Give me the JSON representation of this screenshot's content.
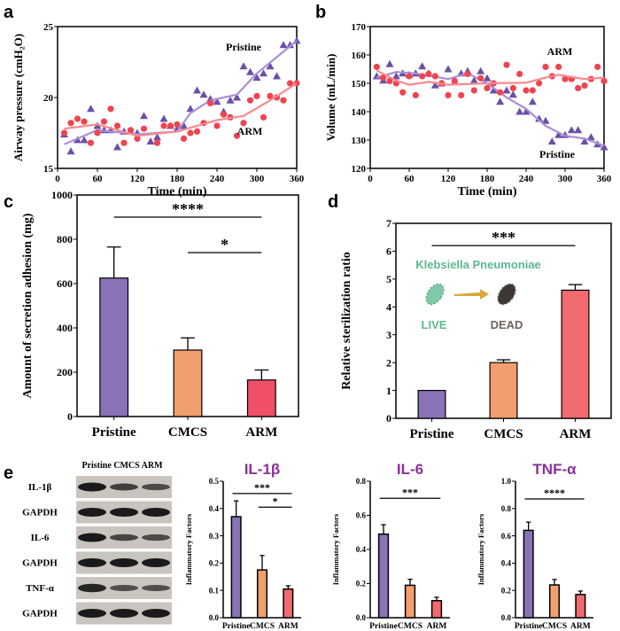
{
  "panels": {
    "a": "a",
    "b": "b",
    "c": "c",
    "d": "d",
    "e": "e"
  },
  "colors": {
    "pristine": "#8a72b6",
    "pristine_marker": "#6b4fa6",
    "pristine_line": "#aa8fd8",
    "arm_marker": "#ef4450",
    "arm_line": "#f68a8e",
    "cmcs": "#f0a06c",
    "arm_bar": "#f06a70",
    "title_purple": "#8a2f9a",
    "live": "#5cb890",
    "dead": "#6d6460"
  },
  "chart_data": [
    {
      "id": "a",
      "type": "scatter",
      "xlabel": "Time (min)",
      "ylabel": "Airway pressure (cmH₂O)",
      "xlim": [
        0,
        360
      ],
      "ylim": [
        15,
        25
      ],
      "xticks": [
        0,
        60,
        120,
        180,
        240,
        300,
        360
      ],
      "yticks": [
        15,
        20,
        25
      ],
      "series": [
        {
          "name": "Pristine",
          "marker": "triangle",
          "points": [
            [
              10,
              17.4
            ],
            [
              20,
              16.2
            ],
            [
              30,
              17
            ],
            [
              40,
              17
            ],
            [
              50,
              19.2
            ],
            [
              60,
              18
            ],
            [
              70,
              17.7
            ],
            [
              80,
              17.7
            ],
            [
              90,
              16.5
            ],
            [
              100,
              17.6
            ],
            [
              110,
              17.6
            ],
            [
              120,
              17.5
            ],
            [
              130,
              18.7
            ],
            [
              140,
              16.9
            ],
            [
              150,
              17.2
            ],
            [
              160,
              18.5
            ],
            [
              170,
              18
            ],
            [
              180,
              17.8
            ],
            [
              190,
              18
            ],
            [
              200,
              19.2
            ],
            [
              210,
              20.5
            ],
            [
              220,
              20.2
            ],
            [
              230,
              19.9
            ],
            [
              240,
              19.7
            ],
            [
              250,
              19
            ],
            [
              260,
              19.8
            ],
            [
              270,
              20
            ],
            [
              280,
              22.2
            ],
            [
              290,
              21.8
            ],
            [
              300,
              21.4
            ],
            [
              310,
              21.7
            ],
            [
              320,
              22.2
            ],
            [
              330,
              21.5
            ],
            [
              340,
              23.7
            ],
            [
              350,
              23.7
            ],
            [
              360,
              24
            ]
          ],
          "trend": [
            [
              10,
              16.7
            ],
            [
              60,
              17.7
            ],
            [
              120,
              17.4
            ],
            [
              180,
              17.6
            ],
            [
              200,
              18.9
            ],
            [
              230,
              19.8
            ],
            [
              270,
              20.2
            ],
            [
              300,
              21.7
            ],
            [
              360,
              24
            ]
          ]
        },
        {
          "name": "ARM",
          "marker": "circle",
          "points": [
            [
              10,
              17.5
            ],
            [
              20,
              18.2
            ],
            [
              30,
              18.5
            ],
            [
              40,
              18.3
            ],
            [
              50,
              16.8
            ],
            [
              60,
              17.5
            ],
            [
              70,
              18.3
            ],
            [
              80,
              19.2
            ],
            [
              90,
              18
            ],
            [
              100,
              16.8
            ],
            [
              110,
              17.7
            ],
            [
              120,
              17.1
            ],
            [
              130,
              17.8
            ],
            [
              150,
              16.8
            ],
            [
              160,
              18
            ],
            [
              170,
              18
            ],
            [
              180,
              18.1
            ],
            [
              190,
              17.1
            ],
            [
              200,
              17.5
            ],
            [
              210,
              17.6
            ],
            [
              220,
              18.2
            ],
            [
              230,
              19.6
            ],
            [
              240,
              18
            ],
            [
              250,
              18.8
            ],
            [
              260,
              18.6
            ],
            [
              270,
              17.3
            ],
            [
              280,
              18.2
            ],
            [
              290,
              19.8
            ],
            [
              300,
              20.1
            ],
            [
              310,
              18.6
            ],
            [
              320,
              20.1
            ],
            [
              330,
              20
            ],
            [
              340,
              19.8
            ],
            [
              350,
              21
            ],
            [
              360,
              21
            ]
          ],
          "trend": [
            [
              10,
              17.8
            ],
            [
              60,
              18.1
            ],
            [
              120,
              17.3
            ],
            [
              180,
              17.6
            ],
            [
              240,
              18.4
            ],
            [
              280,
              18.7
            ],
            [
              320,
              19.8
            ],
            [
              360,
              21
            ]
          ]
        }
      ]
    },
    {
      "id": "b",
      "type": "scatter",
      "xlabel": "Time (min)",
      "ylabel": "Volume (mL/min)",
      "xlim": [
        0,
        360
      ],
      "ylim": [
        120,
        170
      ],
      "xticks": [
        0,
        60,
        120,
        180,
        240,
        300,
        360
      ],
      "yticks": [
        120,
        130,
        140,
        150,
        160,
        170
      ],
      "series": [
        {
          "name": "Pristine",
          "marker": "triangle",
          "points": [
            [
              10,
              152.5
            ],
            [
              20,
              151
            ],
            [
              30,
              156.8
            ],
            [
              40,
              152.5
            ],
            [
              50,
              153.5
            ],
            [
              60,
              153
            ],
            [
              70,
              153.5
            ],
            [
              80,
              156
            ],
            [
              90,
              153.5
            ],
            [
              100,
              149.3
            ],
            [
              110,
              150
            ],
            [
              120,
              155
            ],
            [
              130,
              150.5
            ],
            [
              140,
              153.5
            ],
            [
              150,
              154.3
            ],
            [
              160,
              151
            ],
            [
              170,
              154.3
            ],
            [
              180,
              151.8
            ],
            [
              190,
              147.5
            ],
            [
              200,
              143.5
            ],
            [
              210,
              147.5
            ],
            [
              220,
              146
            ],
            [
              230,
              140
            ],
            [
              240,
              140
            ],
            [
              250,
              143.5
            ],
            [
              260,
              137.5
            ],
            [
              270,
              136.8
            ],
            [
              280,
              129.5
            ],
            [
              290,
              131.8
            ],
            [
              300,
              131.8
            ],
            [
              310,
              133.5
            ],
            [
              320,
              133.5
            ],
            [
              330,
              129.5
            ],
            [
              340,
              131
            ],
            [
              350,
              128.5
            ],
            [
              360,
              127.5
            ]
          ],
          "trend": [
            [
              10,
              152
            ],
            [
              40,
              154
            ],
            [
              70,
              153.5
            ],
            [
              120,
              151.5
            ],
            [
              150,
              153.5
            ],
            [
              180,
              150
            ],
            [
              210,
              145
            ],
            [
              240,
              141
            ],
            [
              270,
              135
            ],
            [
              300,
              131.5
            ],
            [
              330,
              130.5
            ],
            [
              360,
              128
            ]
          ]
        },
        {
          "name": "ARM",
          "marker": "circle",
          "points": [
            [
              10,
              155.8
            ],
            [
              20,
              152
            ],
            [
              30,
              150.8
            ],
            [
              40,
              150
            ],
            [
              50,
              146.8
            ],
            [
              60,
              152.5
            ],
            [
              70,
              145.8
            ],
            [
              80,
              152.5
            ],
            [
              90,
              153.3
            ],
            [
              100,
              152.5
            ],
            [
              110,
              150
            ],
            [
              120,
              145.8
            ],
            [
              130,
              150.8
            ],
            [
              140,
              145.8
            ],
            [
              150,
              153.3
            ],
            [
              160,
              147.5
            ],
            [
              170,
              151.8
            ],
            [
              180,
              148.3
            ],
            [
              190,
              150
            ],
            [
              200,
              146.8
            ],
            [
              210,
              156.5
            ],
            [
              220,
              148.3
            ],
            [
              230,
              153.3
            ],
            [
              240,
              147.5
            ],
            [
              250,
              147.5
            ],
            [
              260,
              150
            ],
            [
              270,
              155.8
            ],
            [
              280,
              152.5
            ],
            [
              290,
              155.8
            ],
            [
              300,
              151.5
            ],
            [
              310,
              151.5
            ],
            [
              320,
              148.3
            ],
            [
              330,
              149.2
            ],
            [
              340,
              151.5
            ],
            [
              350,
              155.8
            ],
            [
              360,
              150.8
            ]
          ],
          "trend": [
            [
              10,
              154.5
            ],
            [
              40,
              151
            ],
            [
              60,
              149.5
            ],
            [
              90,
              150.5
            ],
            [
              120,
              149.5
            ],
            [
              180,
              150
            ],
            [
              240,
              150.2
            ],
            [
              270,
              152
            ],
            [
              290,
              153
            ],
            [
              330,
              151.5
            ],
            [
              360,
              152
            ]
          ]
        }
      ]
    },
    {
      "id": "c",
      "type": "bar",
      "title": "",
      "ylabel": "Amount of secretion adhesion (mg)",
      "ylim": [
        0,
        1000
      ],
      "yticks": [
        0,
        200,
        400,
        600,
        800,
        1000
      ],
      "categories": [
        "Pristine",
        "CMCS",
        "ARM"
      ],
      "values": [
        625,
        300,
        165
      ],
      "errors": [
        140,
        55,
        45
      ],
      "significance": [
        {
          "from": 0,
          "to": 2,
          "label": "****",
          "y": 900
        },
        {
          "from": 1,
          "to": 2,
          "label": "*",
          "y": 740
        }
      ]
    },
    {
      "id": "d",
      "type": "bar",
      "ylabel": "Relative sterilization ratio",
      "ylim": [
        0,
        7
      ],
      "yticks": [
        0,
        1,
        2,
        3,
        4,
        5,
        6,
        7
      ],
      "categories": [
        "Pristine",
        "CMCS",
        "ARM"
      ],
      "values": [
        1,
        2,
        4.6
      ],
      "errors": [
        0,
        0.1,
        0.2
      ],
      "significance": [
        {
          "from": 0,
          "to": 2,
          "label": "***",
          "y": 6.2
        }
      ],
      "inset": {
        "title": "Klebsiella Pneumoniae",
        "live": "LIVE",
        "dead": "DEAD"
      }
    },
    {
      "id": "e1",
      "type": "bar",
      "title": "IL-1β",
      "ylabel": "Inflammatory Factors",
      "ylim": [
        0,
        0.5
      ],
      "yticks": [
        0.0,
        0.1,
        0.2,
        0.3,
        0.4,
        0.5
      ],
      "categories": [
        "Pristine",
        "CMCS",
        "ARM"
      ],
      "values": [
        0.37,
        0.175,
        0.105
      ],
      "errors": [
        0.058,
        0.053,
        0.012
      ],
      "significance": [
        {
          "from": 0,
          "to": 2,
          "label": "***",
          "y": 0.455
        },
        {
          "from": 1,
          "to": 2,
          "label": "*",
          "y": 0.405
        }
      ]
    },
    {
      "id": "e2",
      "type": "bar",
      "title": "IL-6",
      "ylabel": "Inflammatory Factors",
      "ylim": [
        0,
        0.8
      ],
      "yticks": [
        0.0,
        0.2,
        0.4,
        0.6,
        0.8
      ],
      "categories": [
        "Pristine",
        "CMCS",
        "ARM"
      ],
      "values": [
        0.49,
        0.19,
        0.1
      ],
      "errors": [
        0.055,
        0.035,
        0.02
      ],
      "significance": [
        {
          "from": 0,
          "to": 2,
          "label": "***",
          "y": 0.7
        }
      ]
    },
    {
      "id": "e3",
      "type": "bar",
      "title": "TNF-α",
      "ylabel": "Inflammatory Factors",
      "ylim": [
        0,
        1.0
      ],
      "yticks": [
        0.0,
        0.2,
        0.4,
        0.6,
        0.8,
        1.0
      ],
      "categories": [
        "Pristine",
        "CMCS",
        "ARM"
      ],
      "values": [
        0.64,
        0.24,
        0.17
      ],
      "errors": [
        0.06,
        0.04,
        0.025
      ],
      "significance": [
        {
          "from": 0,
          "to": 2,
          "label": "****",
          "y": 0.87
        }
      ]
    }
  ],
  "blot": {
    "header": "Pristine CMCS ARM",
    "rows": [
      {
        "label": "IL-1β",
        "bands": [
          1,
          0.65,
          0.55
        ]
      },
      {
        "label": "GAPDH",
        "bands": [
          1,
          1,
          1
        ]
      },
      {
        "label": "IL-6",
        "bands": [
          1,
          0.6,
          0.55
        ]
      },
      {
        "label": "GAPDH",
        "bands": [
          1,
          1,
          1
        ]
      },
      {
        "label": "TNF-α",
        "bands": [
          0.9,
          0.5,
          0.5
        ]
      },
      {
        "label": "GAPDH",
        "bands": [
          1,
          1,
          1
        ]
      }
    ]
  }
}
